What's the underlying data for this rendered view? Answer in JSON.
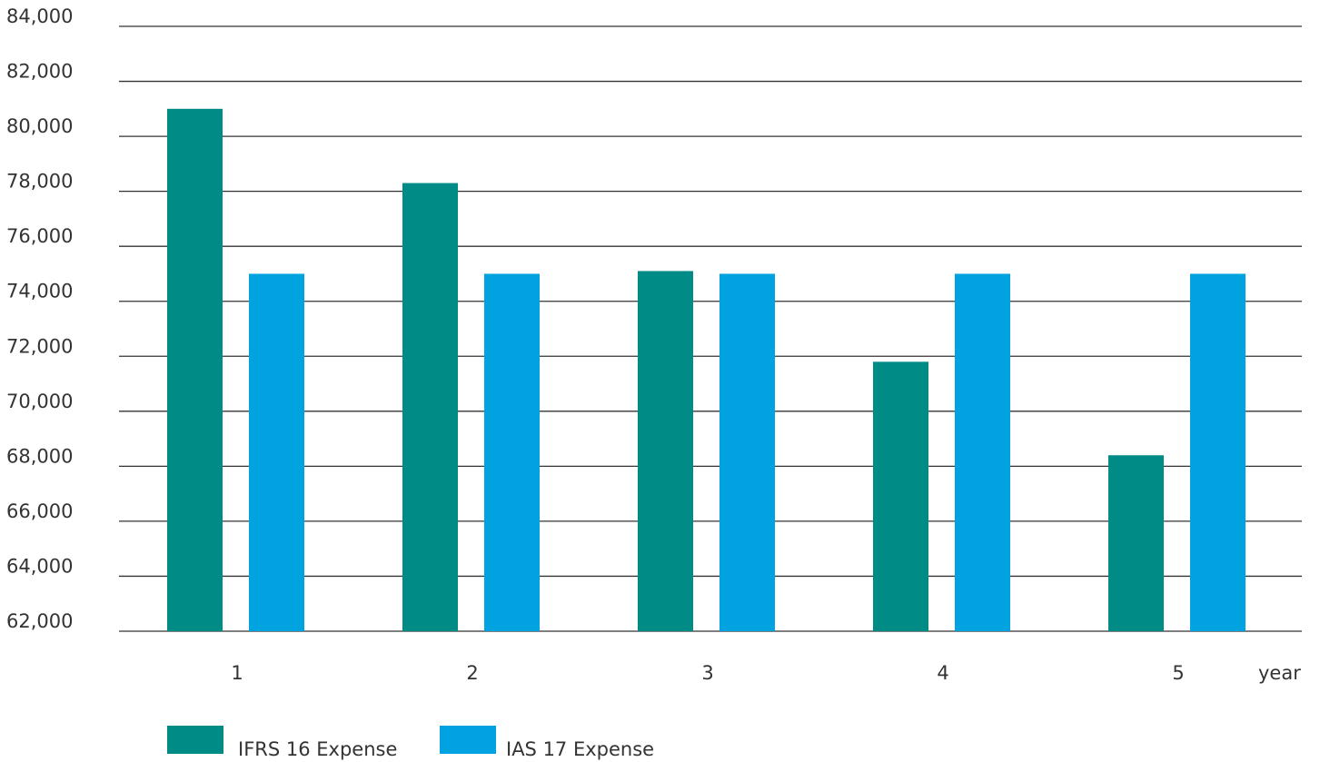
{
  "chart_data": {
    "type": "bar",
    "title": "",
    "xlabel": "year",
    "ylabel": "",
    "categories": [
      "1",
      "2",
      "3",
      "4",
      "5"
    ],
    "series": [
      {
        "name": "IFRS 16 Expense",
        "color": "#008b87",
        "values": [
          81000,
          78300,
          75100,
          71800,
          68400
        ]
      },
      {
        "name": "IAS 17 Expense",
        "color": "#00a3df",
        "values": [
          75000,
          75000,
          75000,
          75000,
          75000
        ]
      }
    ],
    "ylim": [
      62000,
      84000
    ],
    "yticks": [
      "62,000",
      "64,000",
      "66,000",
      "68,000",
      "70,000",
      "72,000",
      "74,000",
      "76,000",
      "78,000",
      "80,000",
      "82,000",
      "84,000"
    ],
    "grid": true,
    "legend": "bottom-left"
  }
}
